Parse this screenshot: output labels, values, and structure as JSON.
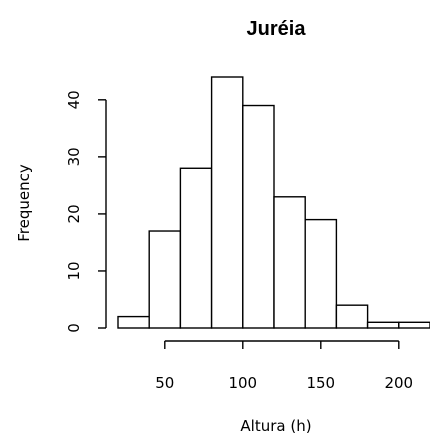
{
  "chart_data": {
    "type": "bar",
    "subtype": "histogram",
    "title": "Juréia",
    "xlabel": "Altura (h)",
    "ylabel": "Frequency",
    "bins": [
      {
        "start": 20,
        "end": 40,
        "count": 2
      },
      {
        "start": 40,
        "end": 60,
        "count": 17
      },
      {
        "start": 60,
        "end": 80,
        "count": 28
      },
      {
        "start": 80,
        "end": 100,
        "count": 44
      },
      {
        "start": 100,
        "end": 120,
        "count": 39
      },
      {
        "start": 120,
        "end": 140,
        "count": 23
      },
      {
        "start": 140,
        "end": 160,
        "count": 19
      },
      {
        "start": 160,
        "end": 180,
        "count": 4
      },
      {
        "start": 180,
        "end": 200,
        "count": 1
      },
      {
        "start": 200,
        "end": 220,
        "count": 1
      }
    ],
    "xlim": [
      20,
      220
    ],
    "ylim": [
      0,
      44
    ],
    "x_ticks": [
      50,
      100,
      150,
      200
    ],
    "y_ticks": [
      0,
      10,
      20,
      30,
      40
    ],
    "grid": false,
    "legend": "none"
  }
}
